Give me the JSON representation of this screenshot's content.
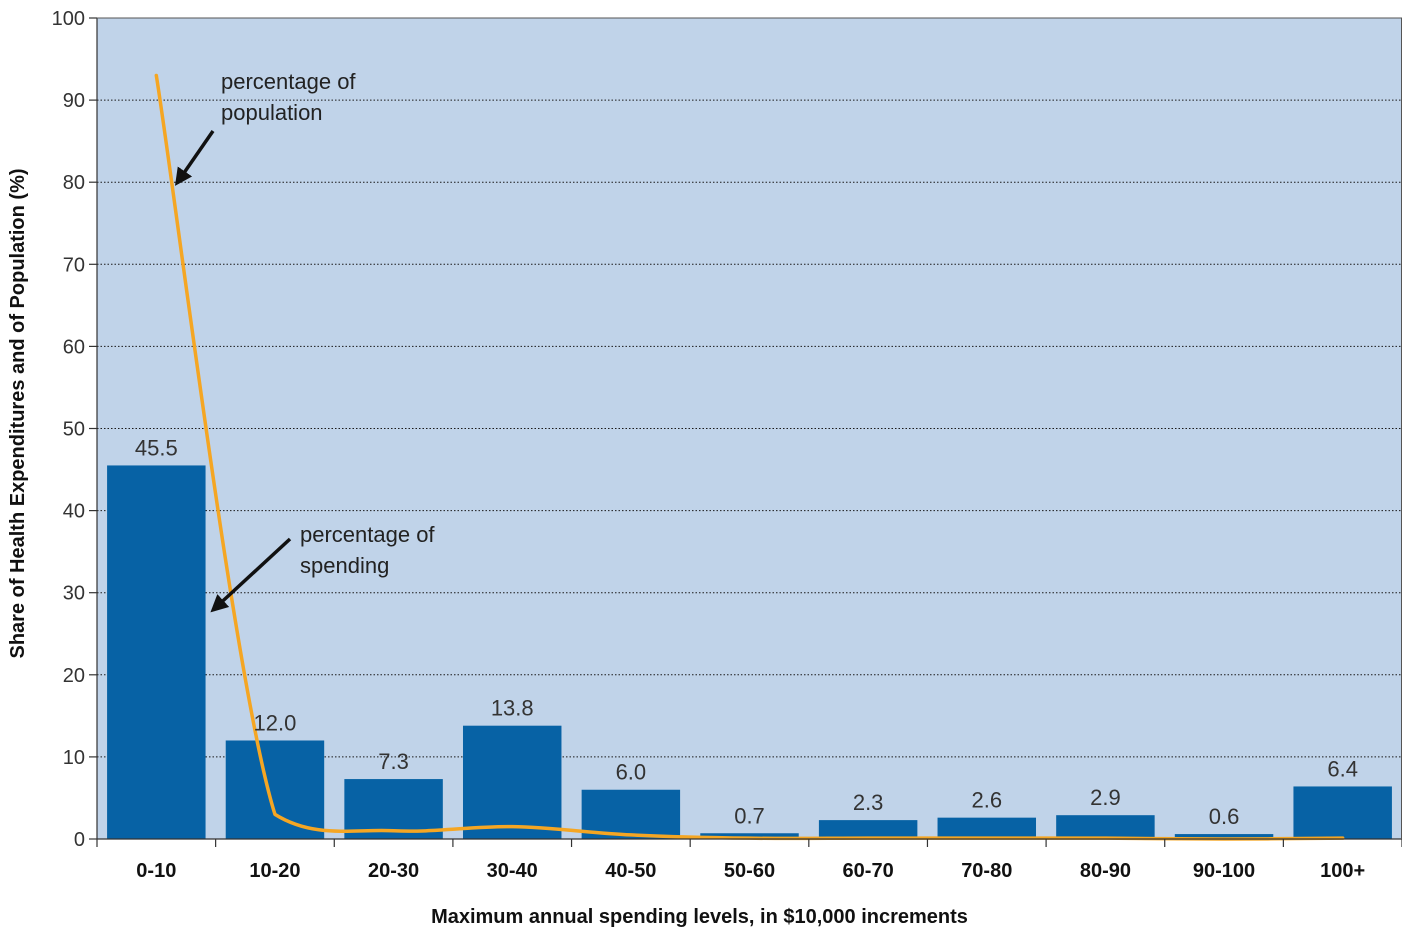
{
  "chart_data": {
    "type": "bar",
    "categories": [
      "0-10",
      "10-20",
      "20-30",
      "30-40",
      "40-50",
      "50-60",
      "60-70",
      "70-80",
      "80-90",
      "90-100",
      "100+"
    ],
    "series": [
      {
        "type": "bar",
        "values": [
          45.5,
          12.0,
          7.3,
          13.8,
          6.0,
          0.7,
          2.3,
          2.6,
          2.9,
          0.6,
          6.4
        ],
        "labels": [
          "45.5",
          "12.0",
          "7.3",
          "13.8",
          "6.0",
          "0.7",
          "2.3",
          "2.6",
          "2.9",
          "0.6",
          "6.4"
        ],
        "color": "#0762a5"
      },
      {
        "type": "line",
        "values": [
          93.0,
          3.0,
          1.0,
          1.5,
          0.5,
          0.1,
          0.1,
          0.1,
          0.1,
          0.0,
          0.1
        ],
        "color": "#f5a623"
      }
    ],
    "annotations": [
      {
        "text_lines": [
          "percentage of",
          "population"
        ],
        "target_series": 1
      },
      {
        "text_lines": [
          "percentage of",
          "spending"
        ],
        "target_series": 0
      }
    ],
    "xlabel": "Maximum annual spending levels, in $10,000 increments",
    "ylabel": "Share of Health Expenditures and of Population (%)",
    "ylim": [
      0,
      100
    ],
    "yticks": [
      0,
      10,
      20,
      30,
      40,
      50,
      60,
      70,
      80,
      90,
      100
    ],
    "grid": true,
    "plot_background": "#c0d3e9"
  }
}
